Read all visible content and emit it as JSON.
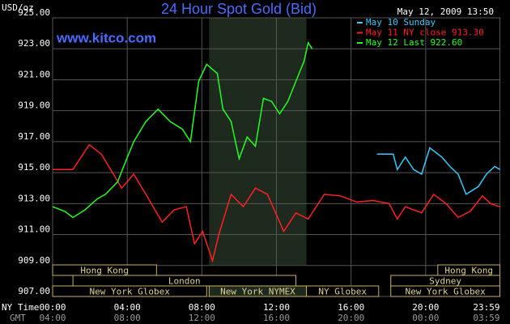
{
  "chart_data": {
    "type": "line",
    "title": "24 Hour Spot Gold (Bid)",
    "y_label": "USD/oz",
    "watermark": "www.kitco.com",
    "timestamp": "May 12, 2009 13:50",
    "x_label": "NY Time",
    "x2_label": "GMT",
    "xlim": [
      0,
      24
    ],
    "ylim": [
      907,
      925
    ],
    "grid": true,
    "xticks": [
      {
        "value": 0,
        "label": "00:00"
      },
      {
        "value": 4,
        "label": "04:00"
      },
      {
        "value": 8,
        "label": "08:00"
      },
      {
        "value": 12,
        "label": "12:00"
      },
      {
        "value": 16,
        "label": "16:00"
      },
      {
        "value": 20,
        "label": "20:00"
      },
      {
        "value": 23.98,
        "label": "23:59"
      }
    ],
    "x2ticks": [
      {
        "value": 0,
        "label": "04:00"
      },
      {
        "value": 4,
        "label": "08:00"
      },
      {
        "value": 8,
        "label": "12:00"
      },
      {
        "value": 12,
        "label": "16:00"
      },
      {
        "value": 16,
        "label": "20:00"
      },
      {
        "value": 20,
        "label": "00:00"
      },
      {
        "value": 23.98,
        "label": "03:59"
      }
    ],
    "yticks": [
      {
        "value": 907,
        "label": "907.00"
      },
      {
        "value": 909,
        "label": "909.00"
      },
      {
        "value": 911,
        "label": "911.00"
      },
      {
        "value": 913,
        "label": "913.00"
      },
      {
        "value": 915,
        "label": "915.00"
      },
      {
        "value": 917,
        "label": "917.00"
      },
      {
        "value": 919,
        "label": "919.00"
      },
      {
        "value": 921,
        "label": "921.00"
      },
      {
        "value": 923,
        "label": "923.00"
      },
      {
        "value": 925,
        "label": "925.00"
      }
    ],
    "series": [
      {
        "name": "May 10 Sunday",
        "color": "#33ccff",
        "x": [
          17.39,
          18.26,
          18.48,
          18.91,
          19.35,
          19.78,
          20.22,
          20.87,
          21.3,
          21.74,
          22.17,
          22.83,
          23.26,
          23.7,
          23.98
        ],
        "values": [
          916.2,
          916.2,
          915.2,
          916.0,
          915.2,
          914.9,
          916.6,
          916.0,
          915.4,
          914.9,
          913.6,
          914.1,
          914.9,
          915.4,
          915.2
        ]
      },
      {
        "name": "May 11 NY close 913.30",
        "color": "#ff2020",
        "x": [
          0,
          1.09,
          1.96,
          2.61,
          3.26,
          3.7,
          4.35,
          5,
          5.87,
          6.52,
          7.17,
          7.61,
          8.04,
          8.57,
          8.91,
          9.57,
          10.22,
          10.87,
          11.52,
          12.39,
          13.04,
          13.7,
          14.57,
          15.43,
          16.3,
          17.17,
          18.04,
          18.48,
          18.91,
          19.78,
          20.43,
          21.09,
          21.74,
          22.39,
          23.04,
          23.48,
          23.98
        ],
        "values": [
          915.2,
          915.2,
          916.8,
          916.2,
          914.9,
          914.0,
          914.9,
          913.6,
          911.8,
          912.6,
          912.8,
          910.4,
          911.2,
          909.3,
          911.0,
          913.6,
          912.8,
          914.0,
          913.6,
          911.2,
          912.4,
          912.0,
          913.6,
          913.5,
          913.1,
          913.2,
          913.0,
          912.0,
          912.8,
          912.4,
          913.6,
          913.0,
          912.1,
          912.5,
          913.5,
          913.0,
          912.8
        ]
      },
      {
        "name": "May 12 Last 922.60",
        "color": "#20ff20",
        "x": [
          0,
          0.65,
          1.09,
          1.74,
          2.39,
          2.83,
          3.48,
          3.91,
          4.35,
          5,
          5.65,
          6.3,
          6.96,
          7.39,
          7.83,
          8.26,
          8.83,
          9.13,
          9.57,
          10,
          10.43,
          10.87,
          11.3,
          11.74,
          12.17,
          12.61,
          13.04,
          13.48,
          13.7,
          13.91
        ],
        "values": [
          912.8,
          912.5,
          912.1,
          912.6,
          913.3,
          913.6,
          914.4,
          915.7,
          917.0,
          918.3,
          919.1,
          918.3,
          917.8,
          917.0,
          920.9,
          922.0,
          921.4,
          919.1,
          918.3,
          915.9,
          917.3,
          916.7,
          919.8,
          919.6,
          918.8,
          919.6,
          920.9,
          922.2,
          923.4,
          923.0
        ]
      }
    ],
    "sessions": [
      {
        "name": "Hong Kong",
        "row": 0,
        "start": 0,
        "end": 5.57
      },
      {
        "name": "Hong Kong",
        "row": 0,
        "start": 20.65,
        "end": 23.98
      },
      {
        "name": "London",
        "row": 1,
        "start": 1.09,
        "end": 13.04
      },
      {
        "name": "Sydney",
        "row": 1,
        "start": 18.13,
        "end": 23.98
      },
      {
        "name": "New York Globex",
        "row": 2,
        "start": 0,
        "end": 8.26
      },
      {
        "name": "New York NYMEX",
        "row": 2,
        "start": 8.39,
        "end": 13.61,
        "highlight": true
      },
      {
        "name": "NY Globex",
        "row": 2,
        "start": 13.61,
        "end": 17.48
      },
      {
        "name": "New York Globex",
        "row": 2,
        "start": 18.13,
        "end": 23.98
      }
    ]
  }
}
